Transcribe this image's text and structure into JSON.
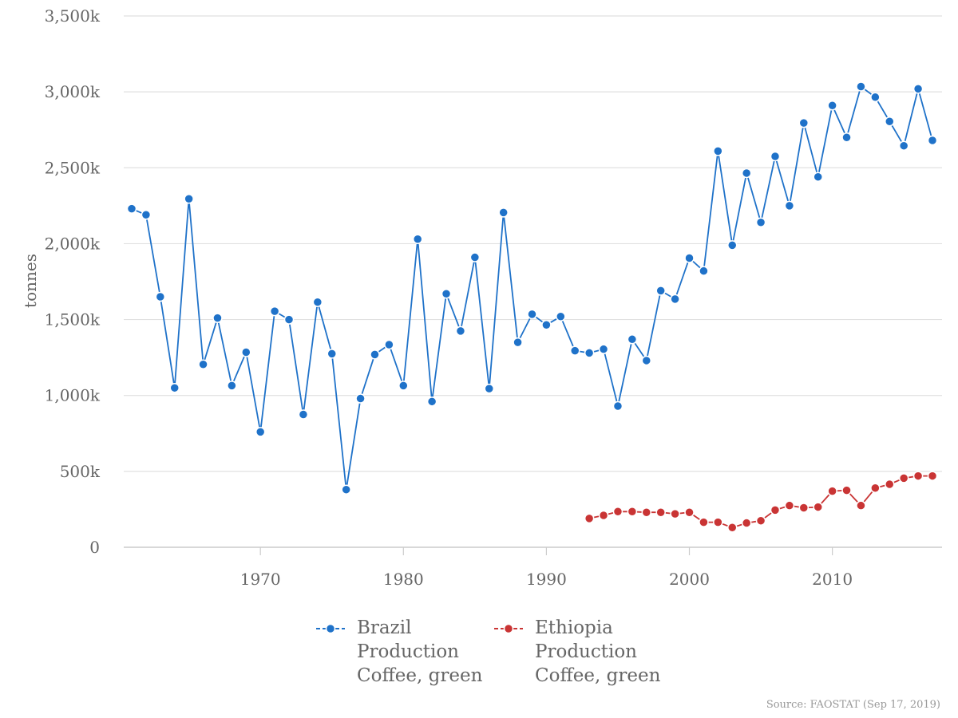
{
  "chart_data": {
    "type": "line",
    "title": "",
    "xlabel": "",
    "ylabel": "tonnes",
    "xlim": [
      1961,
      2017
    ],
    "ylim": [
      0,
      3500000
    ],
    "x_ticks": [
      1970,
      1980,
      1990,
      2000,
      2010
    ],
    "y_ticks": [
      0,
      500000,
      1000000,
      1500000,
      2000000,
      2500000,
      3000000,
      3500000
    ],
    "y_tick_labels": [
      "0",
      "500k",
      "1,000k",
      "1,500k",
      "2,000k",
      "2,500k",
      "3,000k",
      "3,500k"
    ],
    "grid": "horizontal",
    "legend_placement": "bottom",
    "series": [
      {
        "name": "Brazil",
        "legend_lines": [
          "Brazil",
          "Production",
          "Coffee, green"
        ],
        "color": "#1f72c9",
        "x": [
          1961,
          1962,
          1963,
          1964,
          1965,
          1966,
          1967,
          1968,
          1969,
          1970,
          1971,
          1972,
          1973,
          1974,
          1975,
          1976,
          1977,
          1978,
          1979,
          1980,
          1981,
          1982,
          1983,
          1984,
          1985,
          1986,
          1987,
          1988,
          1989,
          1990,
          1991,
          1992,
          1993,
          1994,
          1995,
          1996,
          1997,
          1998,
          1999,
          2000,
          2001,
          2002,
          2003,
          2004,
          2005,
          2006,
          2007,
          2008,
          2009,
          2010,
          2011,
          2012,
          2013,
          2014,
          2015,
          2016,
          2017
        ],
        "y": [
          2230000,
          2190000,
          1650000,
          1050000,
          2295000,
          1205000,
          1510000,
          1065000,
          1285000,
          760000,
          1555000,
          1500000,
          875000,
          1615000,
          1275000,
          380000,
          980000,
          1270000,
          1335000,
          1065000,
          2030000,
          960000,
          1670000,
          1425000,
          1910000,
          1045000,
          2205000,
          1350000,
          1535000,
          1465000,
          1520000,
          1295000,
          1280000,
          1305000,
          930000,
          1370000,
          1230000,
          1690000,
          1635000,
          1905000,
          1820000,
          2610000,
          1990000,
          2465000,
          2140000,
          2575000,
          2250000,
          2795000,
          2440000,
          2910000,
          2700000,
          3035000,
          2965000,
          2805000,
          2645000,
          3020000,
          2680000
        ]
      },
      {
        "name": "Ethiopia",
        "legend_lines": [
          "Ethiopia",
          "Production",
          "Coffee, green"
        ],
        "color": "#c93434",
        "x": [
          1993,
          1994,
          1995,
          1996,
          1997,
          1998,
          1999,
          2000,
          2001,
          2002,
          2003,
          2004,
          2005,
          2006,
          2007,
          2008,
          2009,
          2010,
          2011,
          2012,
          2013,
          2014,
          2015,
          2016,
          2017
        ],
        "y": [
          190000,
          210000,
          235000,
          235000,
          230000,
          230000,
          220000,
          230000,
          165000,
          165000,
          130000,
          160000,
          175000,
          245000,
          275000,
          260000,
          265000,
          370000,
          375000,
          275000,
          390000,
          415000,
          455000,
          470000,
          470000
        ]
      }
    ],
    "source": "Source: FAOSTAT (Sep 17, 2019)"
  }
}
